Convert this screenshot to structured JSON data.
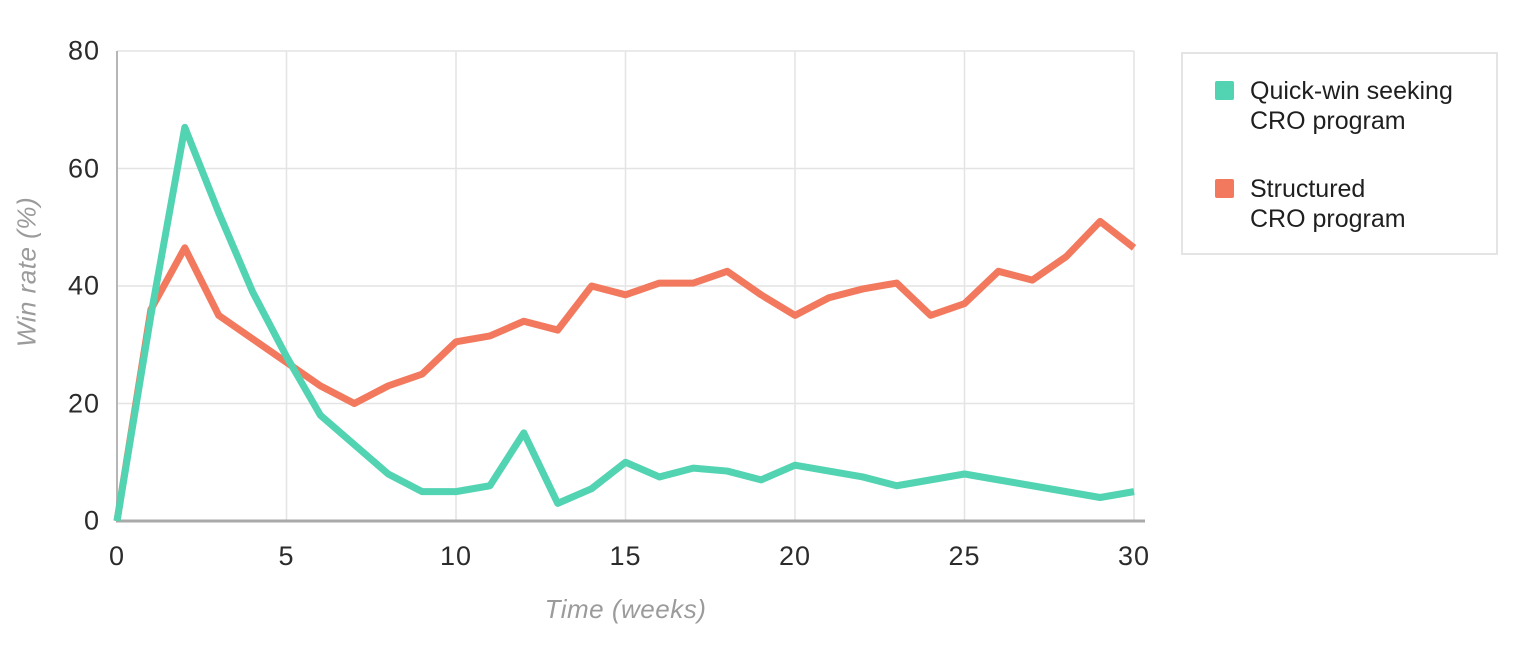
{
  "legend": {
    "items": [
      {
        "line1": "Quick-win seeking",
        "line2": "CRO program",
        "color": "#52d3b2",
        "series": "quickwin"
      },
      {
        "line1": "Structured",
        "line2": "CRO program",
        "color": "#f2795e",
        "series": "structured"
      }
    ]
  },
  "chart_data": {
    "type": "line",
    "title": "",
    "xlabel": "Time (weeks)",
    "ylabel": "Win rate (%)",
    "xlim": [
      0,
      30
    ],
    "ylim": [
      0,
      80
    ],
    "xticks": [
      0,
      5,
      10,
      15,
      20,
      25,
      30
    ],
    "yticks": [
      0,
      20,
      40,
      60,
      80
    ],
    "grid": true,
    "legend_position": "right",
    "x": [
      0,
      1,
      2,
      3,
      4,
      5,
      6,
      7,
      8,
      9,
      10,
      11,
      12,
      13,
      14,
      15,
      16,
      17,
      18,
      19,
      20,
      21,
      22,
      23,
      24,
      25,
      26,
      27,
      28,
      29,
      30
    ],
    "series": [
      {
        "name": "Quick-win seeking CRO program",
        "color": "#52d3b2",
        "values": [
          0,
          35,
          67,
          52.5,
          39,
          28,
          18,
          13,
          8,
          5,
          5,
          6,
          15,
          3,
          5.5,
          10,
          7.5,
          9,
          8.5,
          7,
          9.5,
          8.5,
          7.5,
          6,
          7,
          8,
          7,
          6,
          5,
          4,
          5
        ]
      },
      {
        "name": "Structured CRO program",
        "color": "#f2795e",
        "values": [
          0,
          36,
          46.5,
          35,
          31,
          27,
          23,
          20,
          23,
          25,
          30.5,
          31.5,
          34,
          32.5,
          40,
          38.5,
          40.5,
          40.5,
          42.5,
          38.5,
          35,
          38,
          39.5,
          40.5,
          35,
          37,
          42.5,
          41,
          45,
          51,
          46.5
        ]
      }
    ]
  }
}
